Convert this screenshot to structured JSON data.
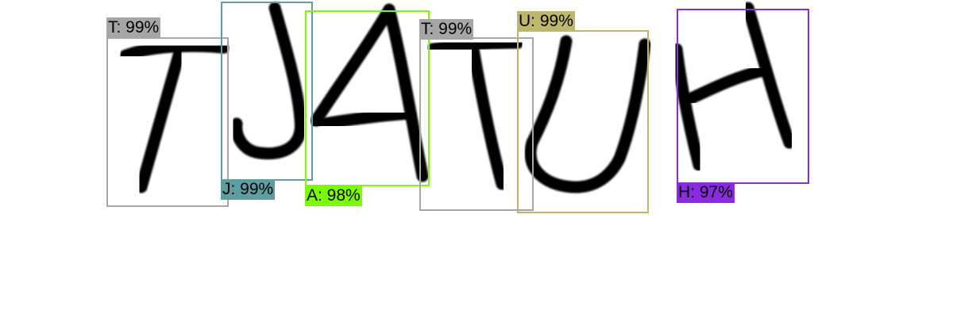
{
  "detections": [
    {
      "char": "T",
      "label": "T: 99%",
      "color": "#a6a6a6"
    },
    {
      "char": "J",
      "label": "J: 99%",
      "color": "#5f9ea0"
    },
    {
      "char": "A",
      "label": "A: 98%",
      "color": "#7cfc00"
    },
    {
      "char": "T",
      "label": "T: 99%",
      "color": "#a6a6a6"
    },
    {
      "char": "U",
      "label": "U: 99%",
      "color": "#bdb76b"
    },
    {
      "char": "H",
      "label": "H: 97%",
      "color": "#8a2be2"
    }
  ]
}
